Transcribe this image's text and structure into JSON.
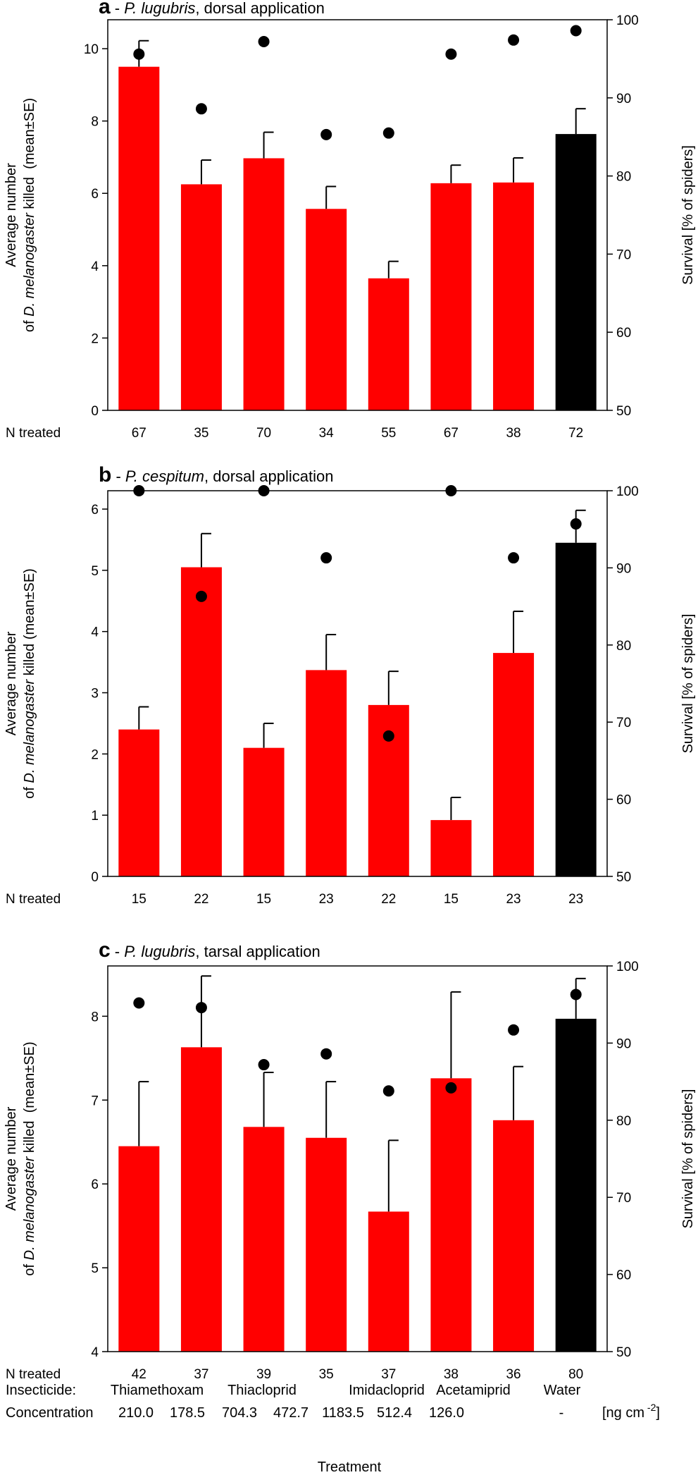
{
  "chart_data": [
    {
      "type": "bar",
      "panel_letter": "a",
      "title_dash": " - ",
      "title_species": "P. lugubris",
      "title_suffix": ", dorsal application",
      "ylabel_line1": "Average number",
      "ylabel_line2_pre": "of ",
      "ylabel_line2_species": "D. melanogaster",
      "ylabel_line2_post": " killed  (mean±SE)",
      "y2label": "Survival [% of spiders]",
      "ylim": [
        0,
        10.8
      ],
      "yticks": [
        0,
        2,
        4,
        6,
        8,
        10
      ],
      "y2lim": [
        50,
        100
      ],
      "y2ticks": [
        50,
        60,
        70,
        80,
        90,
        100
      ],
      "n_label": "N treated",
      "n_treated": [
        "67",
        "35",
        "70",
        "34",
        "55",
        "67",
        "38",
        "72"
      ],
      "values": [
        9.5,
        6.25,
        6.97,
        5.57,
        3.65,
        6.28,
        6.3,
        7.64
      ],
      "errors": [
        0.72,
        0.67,
        0.72,
        0.62,
        0.47,
        0.5,
        0.68,
        0.7
      ],
      "survival": [
        95.6,
        88.6,
        97.2,
        85.3,
        85.5,
        95.6,
        97.4,
        98.6
      ],
      "bar_colors": [
        "#ff0000",
        "#ff0000",
        "#ff0000",
        "#ff0000",
        "#ff0000",
        "#ff0000",
        "#ff0000",
        "#000000"
      ]
    },
    {
      "type": "bar",
      "panel_letter": "b",
      "title_dash": " - ",
      "title_species": "P. cespitum",
      "title_suffix": ", dorsal application",
      "ylabel_line1": "Average number",
      "ylabel_line2_pre": "of ",
      "ylabel_line2_species": "D. melanogaster",
      "ylabel_line2_post": " killed (mean±SE)",
      "y2label": "Survival [% of spiders]",
      "ylim": [
        0,
        6.3
      ],
      "yticks": [
        0,
        1,
        2,
        3,
        4,
        5,
        6
      ],
      "y2lim": [
        50,
        100
      ],
      "y2ticks": [
        50,
        60,
        70,
        80,
        90,
        100
      ],
      "n_label": "N treated",
      "n_treated": [
        "15",
        "22",
        "15",
        "23",
        "22",
        "15",
        "23",
        "23"
      ],
      "values": [
        2.4,
        5.05,
        2.1,
        3.37,
        2.8,
        0.92,
        3.65,
        5.45
      ],
      "errors": [
        0.37,
        0.55,
        0.4,
        0.58,
        0.55,
        0.37,
        0.68,
        0.53
      ],
      "survival": [
        100,
        86.3,
        100,
        91.3,
        68.2,
        100,
        91.3,
        95.7
      ],
      "bar_colors": [
        "#ff0000",
        "#ff0000",
        "#ff0000",
        "#ff0000",
        "#ff0000",
        "#ff0000",
        "#ff0000",
        "#000000"
      ]
    },
    {
      "type": "bar",
      "panel_letter": "c",
      "title_dash": " - ",
      "title_species": "P. lugubris",
      "title_suffix": ", tarsal application",
      "ylabel_line1": "Average number",
      "ylabel_line2_pre": "of ",
      "ylabel_line2_species": "D. melanogaster",
      "ylabel_line2_post": " killed  (mean±SE)",
      "y2label": "Survival [% of spiders]",
      "ylim": [
        4,
        8.6
      ],
      "yticks": [
        4,
        5,
        6,
        7,
        8
      ],
      "y2lim": [
        50,
        100
      ],
      "y2ticks": [
        50,
        60,
        70,
        80,
        90,
        100
      ],
      "n_label": "N treated",
      "n_treated": [
        "42",
        "37",
        "39",
        "35",
        "37",
        "38",
        "36",
        "80"
      ],
      "values": [
        6.45,
        7.63,
        6.68,
        6.55,
        5.67,
        7.26,
        6.76,
        7.97
      ],
      "errors": [
        0.77,
        0.85,
        0.65,
        0.67,
        0.85,
        1.03,
        0.64,
        0.48
      ],
      "survival": [
        95.2,
        94.6,
        87.2,
        88.6,
        83.8,
        84.2,
        91.7,
        96.3
      ],
      "bar_colors": [
        "#ff0000",
        "#ff0000",
        "#ff0000",
        "#ff0000",
        "#ff0000",
        "#ff0000",
        "#ff0000",
        "#000000"
      ]
    }
  ],
  "footer": {
    "insecticide_label": "Insecticide:",
    "insecticides": [
      "Thiamethoxam",
      "Thiacloprid",
      "Imidacloprid",
      "Acetamiprid",
      "Water"
    ],
    "concentration_label": "Concentration",
    "concentrations": [
      "210.0",
      "178.5",
      "704.3",
      "472.7",
      "1183.5",
      "512.4",
      "126.0",
      "-"
    ],
    "unit_prefix": "[ng cm",
    "unit_exponent": " -2",
    "unit_suffix": "]",
    "xlabel": "Treatment"
  }
}
